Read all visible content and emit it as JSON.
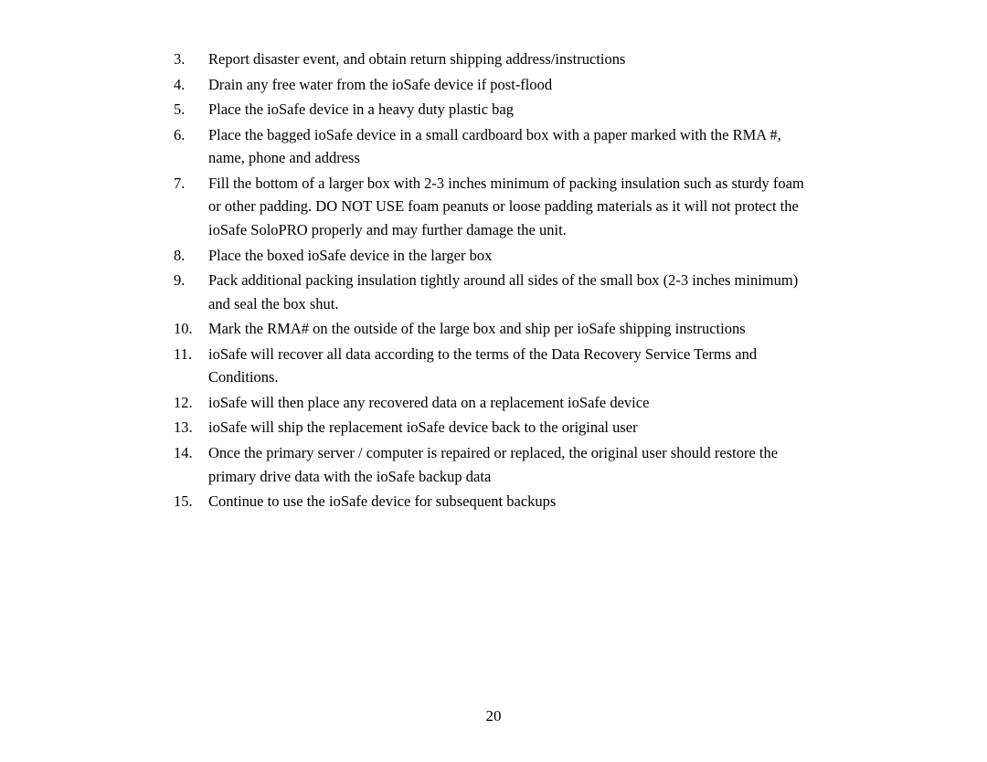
{
  "listItems": [
    {
      "num": "3.",
      "text": "Report disaster event, and obtain return shipping address/instructions"
    },
    {
      "num": "4.",
      "text": "Drain any free water from the ioSafe device if post-flood"
    },
    {
      "num": "5.",
      "text": "Place the ioSafe device in a heavy duty plastic bag"
    },
    {
      "num": "6.",
      "text": "Place the bagged ioSafe device in a small cardboard box with a paper marked with the RMA #, name, phone and address"
    },
    {
      "num": "7.",
      "text": "Fill the bottom of a larger box with 2-3 inches minimum of packing insulation such as sturdy foam or other padding.  DO NOT USE foam peanuts or loose padding materials as it will not protect the ioSafe SoloPRO properly and may further damage the unit."
    },
    {
      "num": "8.",
      "text": "Place the boxed ioSafe device in the larger box"
    },
    {
      "num": "9.",
      "text": "Pack additional packing insulation tightly around all sides of the small box (2-3 inches minimum) and seal the box shut."
    },
    {
      "num": "10.",
      "text": "Mark the RMA# on the outside of the large box and ship per ioSafe shipping instructions"
    },
    {
      "num": "11.",
      "text": "ioSafe will recover all data according to the terms of the Data Recovery Service Terms and Conditions."
    },
    {
      "num": "12.",
      "text": "ioSafe will then place any recovered data on a replacement ioSafe device"
    },
    {
      "num": "13.",
      "text": "ioSafe will ship the replacement ioSafe device back to the original user"
    },
    {
      "num": "14.",
      "text": "Once the primary server / computer is repaired or replaced, the original user should restore the primary drive data with the ioSafe backup data"
    },
    {
      "num": "15.",
      "text": "Continue to use the ioSafe device for subsequent backups"
    }
  ],
  "pageNumber": "20",
  "style": {
    "text_color": "#000000",
    "background_color": "#ffffff",
    "fontsize": 16.5,
    "line_height": 1.55
  }
}
